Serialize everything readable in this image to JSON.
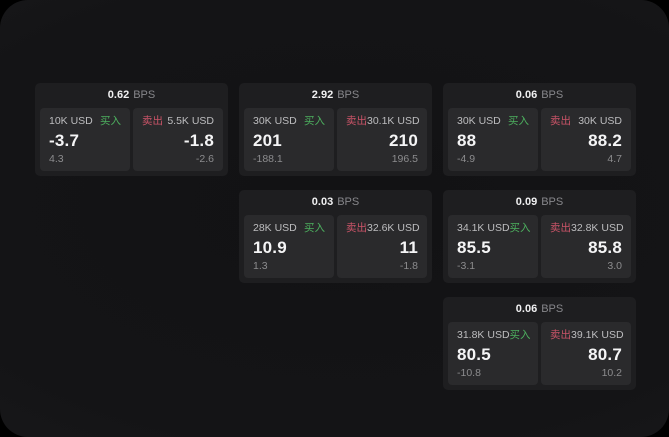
{
  "labels": {
    "bps_unit": "BPS",
    "buy": "买入",
    "sell": "卖出"
  },
  "colors": {
    "buy_green": "#4db05f",
    "sell_red": "#cb5468",
    "card_bg": "#1e1e20",
    "panel_bg": "#2a2a2c",
    "screen_bg": "#141416"
  },
  "cards": [
    {
      "bps": "0.62",
      "buy": {
        "amount": "10K USD",
        "price": "-3.7",
        "delta": "4.3"
      },
      "sell": {
        "amount": "5.5K USD",
        "price": "-1.8",
        "delta": "-2.6"
      }
    },
    {
      "bps": "2.92",
      "buy": {
        "amount": "30K USD",
        "price": "201",
        "delta": "-188.1"
      },
      "sell": {
        "amount": "30.1K USD",
        "price": "210",
        "delta": "196.5"
      }
    },
    {
      "bps": "0.06",
      "buy": {
        "amount": "30K USD",
        "price": "88",
        "delta": "-4.9"
      },
      "sell": {
        "amount": "30K USD",
        "price": "88.2",
        "delta": "4.7"
      }
    },
    {
      "bps": "0.03",
      "buy": {
        "amount": "28K USD",
        "price": "10.9",
        "delta": "1.3"
      },
      "sell": {
        "amount": "32.6K USD",
        "price": "11",
        "delta": "-1.8"
      }
    },
    {
      "bps": "0.09",
      "buy": {
        "amount": "34.1K USD",
        "price": "85.5",
        "delta": "-3.1"
      },
      "sell": {
        "amount": "32.8K USD",
        "price": "85.8",
        "delta": "3.0"
      }
    },
    {
      "bps": "0.06",
      "buy": {
        "amount": "31.8K USD",
        "price": "80.5",
        "delta": "-10.8"
      },
      "sell": {
        "amount": "39.1K USD",
        "price": "80.7",
        "delta": "10.2"
      }
    }
  ]
}
